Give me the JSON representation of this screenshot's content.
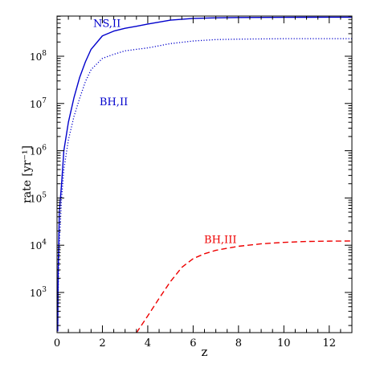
{
  "chart_data": {
    "type": "line",
    "title": "",
    "xlabel": "z",
    "ylabel": "rate [yr⁻¹]",
    "xlim": [
      0,
      13
    ],
    "ylim_log10": [
      2.15,
      8.85
    ],
    "y_scale": "log",
    "grid": false,
    "legend": "none",
    "x_ticks": [
      0,
      2,
      4,
      6,
      8,
      10,
      12
    ],
    "y_ticks": [
      {
        "exp": 3,
        "label": "10",
        "sup": "3"
      },
      {
        "exp": 4,
        "label": "10",
        "sup": "4"
      },
      {
        "exp": 5,
        "label": "10",
        "sup": "5"
      },
      {
        "exp": 6,
        "label": "10",
        "sup": "6"
      },
      {
        "exp": 7,
        "label": "10",
        "sup": "7"
      },
      {
        "exp": 8,
        "label": "10",
        "sup": "8"
      }
    ],
    "series": [
      {
        "name": "NS,II",
        "color": "#0000cc",
        "dash": "solid",
        "x": [
          0.03,
          0.05,
          0.1,
          0.2,
          0.3,
          0.5,
          0.75,
          1.0,
          1.25,
          1.5,
          2.0,
          2.5,
          3.0,
          3.5,
          4.0,
          5.0,
          6.0,
          7.0,
          8.0,
          10.0,
          12.0,
          13.0
        ],
        "y": [
          150.0,
          3000.0,
          50000.0,
          200000.0,
          1000000.0,
          4000000.0,
          13500000.0,
          36000000.0,
          76000000.0,
          140000000.0,
          270000000.0,
          340000000.0,
          390000000.0,
          430000000.0,
          480000000.0,
          580000000.0,
          630000000.0,
          650000000.0,
          660000000.0,
          665000000.0,
          670000000.0,
          670000000.0
        ]
      },
      {
        "name": "BH,II",
        "color": "#0000cc",
        "dash": "dotted",
        "x": [
          0.03,
          0.05,
          0.1,
          0.2,
          0.3,
          0.5,
          0.75,
          1.0,
          1.25,
          1.5,
          2.0,
          2.5,
          3.0,
          3.5,
          4.0,
          5.0,
          6.0,
          7.0,
          8.0,
          10.0,
          12.0,
          13.0
        ],
        "y": [
          150.0,
          1000.0,
          10000.0,
          100000.0,
          400000.0,
          1700000.0,
          5400000.0,
          13000000.0,
          29000000.0,
          52000000.0,
          90000000.0,
          110000000.0,
          130000000.0,
          140000000.0,
          150000000.0,
          185000000.0,
          210000000.0,
          225000000.0,
          230000000.0,
          235000000.0,
          235000000.0,
          235000000.0
        ]
      },
      {
        "name": "BH,III",
        "color": "#ee0000",
        "dash": "dashed",
        "x": [
          3.5,
          4.0,
          4.5,
          5.0,
          5.5,
          6.0,
          6.5,
          7.0,
          8.0,
          9.0,
          10.0,
          11.0,
          12.0,
          13.0
        ],
        "y": [
          140.0,
          320.0,
          750.0,
          1700.0,
          3400.0,
          5200.0,
          6600.0,
          7800.0,
          9500.0,
          10700.0,
          11500.0,
          12000.0,
          12200.0,
          12300.0
        ]
      }
    ],
    "annotations": [
      {
        "text": "NS,II",
        "x": 2.2,
        "y_log10": 8.62,
        "color": "#0000cc"
      },
      {
        "text": "BH,II",
        "x": 2.5,
        "y_log10": 6.96,
        "color": "#0000cc"
      },
      {
        "text": "BH,III",
        "x": 7.2,
        "y_log10": 4.05,
        "color": "#ee0000"
      }
    ]
  }
}
